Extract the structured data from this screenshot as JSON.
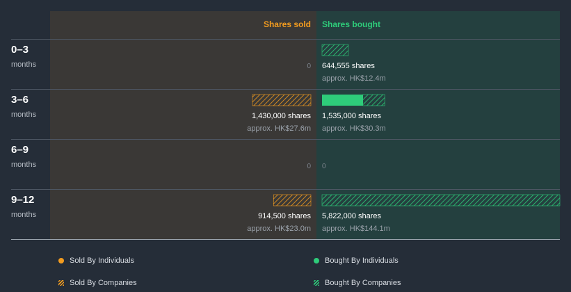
{
  "chart_data": {
    "type": "bar",
    "orientation": "horizontal-diverging",
    "headers": {
      "sold": "Shares sold",
      "bought": "Shares bought"
    },
    "categories": [
      {
        "range": "0–3",
        "unit": "months"
      },
      {
        "range": "3–6",
        "unit": "months"
      },
      {
        "range": "6–9",
        "unit": "months"
      },
      {
        "range": "9–12",
        "unit": "months"
      }
    ],
    "sold": [
      {
        "individuals": 0,
        "companies": 0,
        "total": 0,
        "shares_label": "",
        "approx_label": "",
        "zero_label": "0"
      },
      {
        "individuals": 0,
        "companies": 1430000,
        "total": 1430000,
        "shares_label": "1,430,000 shares",
        "approx_label": "approx. HK$27.6m",
        "zero_label": ""
      },
      {
        "individuals": 0,
        "companies": 0,
        "total": 0,
        "shares_label": "",
        "approx_label": "",
        "zero_label": "0"
      },
      {
        "individuals": 0,
        "companies": 914500,
        "total": 914500,
        "shares_label": "914,500 shares",
        "approx_label": "approx. HK$23.0m",
        "zero_label": ""
      }
    ],
    "bought": [
      {
        "individuals": 0,
        "companies": 644555,
        "total": 644555,
        "shares_label": "644,555 shares",
        "approx_label": "approx. HK$12.4m",
        "zero_label": ""
      },
      {
        "individuals": 1000000,
        "companies": 535000,
        "total": 1535000,
        "shares_label": "1,535,000 shares",
        "approx_label": "approx. HK$30.3m",
        "zero_label": ""
      },
      {
        "individuals": 0,
        "companies": 0,
        "total": 0,
        "shares_label": "",
        "approx_label": "",
        "zero_label": "0"
      },
      {
        "individuals": 0,
        "companies": 5822000,
        "total": 5822000,
        "shares_label": "5,822,000 shares",
        "approx_label": "approx. HK$144.1m",
        "zero_label": ""
      }
    ],
    "max_value": 5822000,
    "legend": [
      {
        "label": "Sold By Individuals",
        "style": "dot",
        "color": "#f39c1f"
      },
      {
        "label": "Bought By Individuals",
        "style": "dot",
        "color": "#2ecc7a"
      },
      {
        "label": "Sold By Companies",
        "style": "hatch",
        "color": "#f39c1f"
      },
      {
        "label": "Bought By Companies",
        "style": "hatch",
        "color": "#2ecc7a"
      }
    ],
    "colors": {
      "background": "#252d38",
      "sold_panel": "#3a3836",
      "bought_panel": "#24403f",
      "sold": "#f39c1f",
      "bought": "#2ecc7a",
      "separator": "#4d5663"
    }
  }
}
